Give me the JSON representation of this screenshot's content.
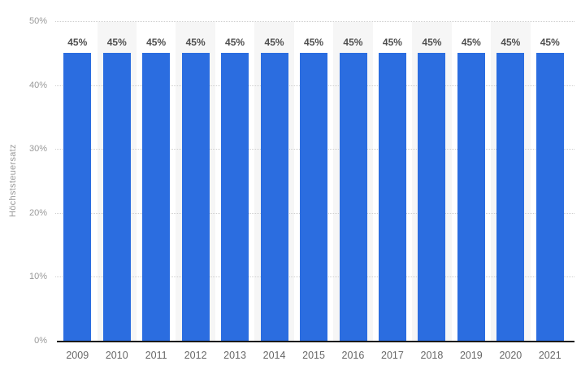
{
  "chart_data": {
    "type": "bar",
    "title": "",
    "xlabel": "",
    "ylabel": "Höchststeuersatz",
    "ylim": [
      0,
      50
    ],
    "grid": "horizontal-dotted",
    "legend": "none",
    "categories": [
      "2009",
      "2010",
      "2011",
      "2012",
      "2013",
      "2014",
      "2015",
      "2016",
      "2017",
      "2018",
      "2019",
      "2020",
      "2021"
    ],
    "values": [
      45,
      45,
      45,
      45,
      45,
      45,
      45,
      45,
      45,
      45,
      45,
      45,
      45
    ],
    "value_labels": [
      "45%",
      "45%",
      "45%",
      "45%",
      "45%",
      "45%",
      "45%",
      "45%",
      "45%",
      "45%",
      "45%",
      "45%",
      "45%"
    ],
    "yticks": [
      {
        "value": 50,
        "label": "50%"
      },
      {
        "value": 40,
        "label": "40%"
      },
      {
        "value": 30,
        "label": "30%"
      },
      {
        "value": 20,
        "label": "20%"
      },
      {
        "value": 10,
        "label": "10%"
      },
      {
        "value": 0,
        "label": "0%"
      }
    ]
  },
  "style": {
    "bar_color": "#2b6de0",
    "stripe_color": "#f6f6f6",
    "grid_color": "#cfcfcf",
    "axis_line_color": "#1a1a1a",
    "y_tick_label_color": "#9a9a9a",
    "x_tick_label_color": "#666666",
    "data_label_color": "#4f4f4f",
    "background_color": "#ffffff",
    "striped_column_indices": [
      1,
      3,
      5,
      7,
      9,
      11
    ]
  }
}
